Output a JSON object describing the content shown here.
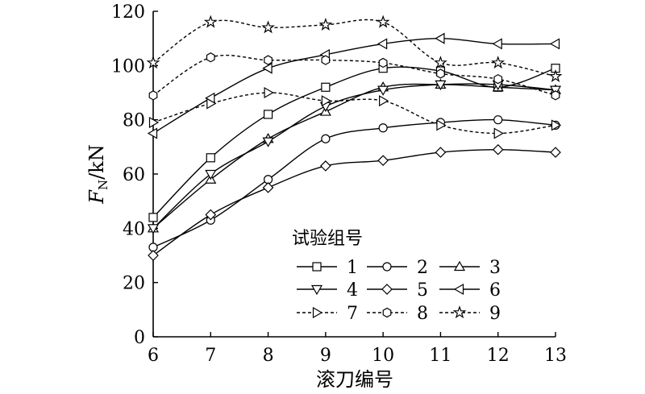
{
  "chart_data": {
    "type": "line",
    "xlabel": "滚刀编号",
    "ylabel_main": "F",
    "ylabel_sub": "N",
    "ylabel_unit": "/kN",
    "x": [
      6,
      7,
      8,
      9,
      10,
      11,
      12,
      13
    ],
    "xlim": [
      6,
      13
    ],
    "ylim": [
      0,
      120
    ],
    "xticks": [
      "6",
      "7",
      "8",
      "9",
      "10",
      "11",
      "12",
      "13"
    ],
    "yticks": [
      "0",
      "20",
      "40",
      "60",
      "80",
      "100",
      "120"
    ],
    "grid": false,
    "legend": {
      "title": "试验组号",
      "placement": "center",
      "columns": 3
    },
    "series": [
      {
        "name": "1",
        "marker": "square",
        "dash": "solid",
        "values": [
          44,
          66,
          82,
          92,
          99,
          98,
          92,
          99
        ]
      },
      {
        "name": "2",
        "marker": "circle",
        "dash": "solid",
        "values": [
          33,
          43,
          58,
          73,
          77,
          79,
          80,
          78
        ]
      },
      {
        "name": "3",
        "marker": "triangle-up",
        "dash": "solid",
        "values": [
          40,
          58,
          73,
          83,
          92,
          93,
          92,
          91
        ]
      },
      {
        "name": "4",
        "marker": "triangle-down",
        "dash": "solid",
        "values": [
          40,
          60,
          72,
          85,
          91,
          93,
          93,
          91
        ]
      },
      {
        "name": "5",
        "marker": "diamond",
        "dash": "solid",
        "values": [
          30,
          45,
          55,
          63,
          65,
          68,
          69,
          68
        ]
      },
      {
        "name": "6",
        "marker": "triangle-left",
        "dash": "solid",
        "values": [
          75,
          88,
          99,
          104,
          108,
          110,
          108,
          108
        ]
      },
      {
        "name": "7",
        "marker": "triangle-right",
        "dash": "dashed",
        "values": [
          79,
          86,
          90,
          87,
          87,
          78,
          75,
          78
        ]
      },
      {
        "name": "8",
        "marker": "hexagon",
        "dash": "dashed",
        "values": [
          89,
          103,
          102,
          102,
          101,
          97,
          95,
          89
        ]
      },
      {
        "name": "9",
        "marker": "star",
        "dash": "dashed",
        "values": [
          101,
          116,
          114,
          115,
          116,
          101,
          101,
          96
        ]
      }
    ]
  }
}
